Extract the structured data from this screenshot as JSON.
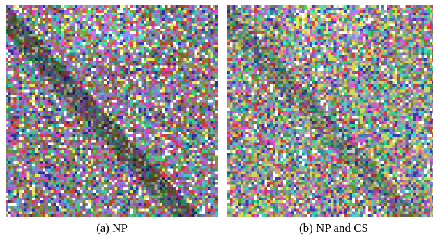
{
  "figure": {
    "panels": [
      {
        "id": "a",
        "caption": "(a) NP",
        "palette": [
          "#7f82d9",
          "#8e54c9",
          "#a16cde",
          "#6f8f2c",
          "#8d8a3a",
          "#8a5a20",
          "#42c4d0",
          "#34d46e",
          "#e63fb8",
          "#e8e85a",
          "#2f2fa0",
          "#d63a3a",
          "#9a9a9a",
          "#ffffff",
          "#1f8f8f"
        ]
      },
      {
        "id": "b",
        "caption": "(b) NP and CS",
        "palette": [
          "#3fd4d0",
          "#e84fc8",
          "#7f82d9",
          "#8e54c9",
          "#d9d94a",
          "#6f8f2c",
          "#2fd46a",
          "#e0a24a",
          "#d63a3a",
          "#3a3ab0",
          "#9a9a9a",
          "#ffffff",
          "#a8a8a8",
          "#1f8f8f",
          "#c8d86a"
        ]
      }
    ]
  }
}
